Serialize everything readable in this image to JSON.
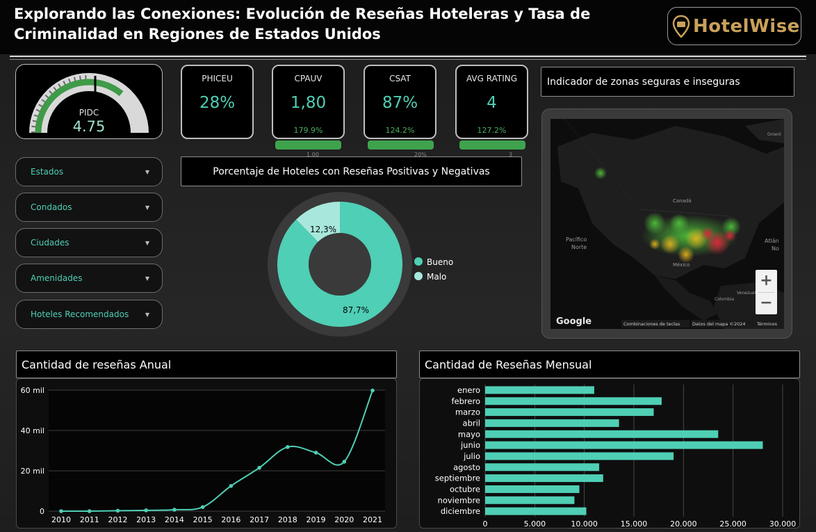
{
  "header": {
    "title_line1": "Explorando las Conexiones: Evolución de Reseñas Hoteleras y Tasa de",
    "title_line2": "Criminalidad en Regiones de Estados Unidos",
    "brand": "HotelWise"
  },
  "gauge": {
    "label": "PIDC",
    "value": "4.75",
    "fill_fraction": 0.72
  },
  "kpis": [
    {
      "name": "PHICEU",
      "value": "28%",
      "pct": "179.9%",
      "tick": "1.00"
    },
    {
      "name": "CPAUV",
      "value": "1,80",
      "pct": "124.2%",
      "tick": "20%"
    },
    {
      "name": "CSAT",
      "value": "87%",
      "pct": "127.2%",
      "tick": "3"
    },
    {
      "name": "AVG RATING",
      "value": "4",
      "pct": "",
      "tick": ""
    }
  ],
  "filters": [
    "Estados",
    "Condados",
    "Ciudades",
    "Amenidades",
    "Hoteles Recomendados"
  ],
  "donut": {
    "title": "Porcentaje de Hoteles con Reseñas Positivas y Negativas",
    "good_label": "Bueno",
    "bad_label": "Malo",
    "good_value": "87,7%",
    "bad_value": "12,3%",
    "good_fraction": 0.877,
    "colors": {
      "good": "#4fcfb5",
      "bad": "#a8e8dc",
      "ring": "#3a3a3a"
    }
  },
  "map": {
    "title": "Indicador de zonas seguras e inseguras",
    "labels": {
      "canada": "Canadá",
      "pacific": "Pacífico",
      "pacific2": "Norte",
      "mexico": "México",
      "atlantic": "Atlán",
      "atlantic2": "No",
      "greenland": "Groenl",
      "venezuela": "Venezuela",
      "colombia": "Colombia"
    },
    "zoom_in": "+",
    "zoom_out": "−",
    "google": "Google",
    "shortcuts": "Combinaciones de teclas",
    "mapdata": "Datos del mapa ©2024",
    "terms": "Términos"
  },
  "annual": {
    "title": "Cantidad de reseñas Anual",
    "chart_data": {
      "type": "line",
      "x": [
        "2010",
        "2011",
        "2012",
        "2013",
        "2014",
        "2015",
        "2016",
        "2017",
        "2018",
        "2019",
        "2020",
        "2021"
      ],
      "values": [
        0,
        0,
        200,
        400,
        700,
        2000,
        12500,
        21500,
        31800,
        29000,
        24500,
        59800
      ],
      "yticks": [
        "0",
        "20 mil",
        "40 mil",
        "60 mil"
      ],
      "ylim": [
        0,
        60000
      ],
      "color": "#4fcfb5"
    }
  },
  "monthly": {
    "title": "Cantidad de Reseñas Mensual",
    "chart_data": {
      "type": "bar",
      "orientation": "horizontal",
      "categories": [
        "enero",
        "febrero",
        "marzo",
        "abril",
        "mayo",
        "junio",
        "julio",
        "agosto",
        "septiembre",
        "octubre",
        "noviembre",
        "diciembre"
      ],
      "values": [
        11000,
        17800,
        17000,
        13500,
        23500,
        28000,
        19000,
        11500,
        11900,
        9500,
        9000,
        10200
      ],
      "xticks": [
        "0",
        "5.000",
        "10.000",
        "15.000",
        "20.000",
        "25.000",
        "30.000"
      ],
      "xlim": [
        0,
        30000
      ],
      "color": "#4fcfb5"
    }
  }
}
